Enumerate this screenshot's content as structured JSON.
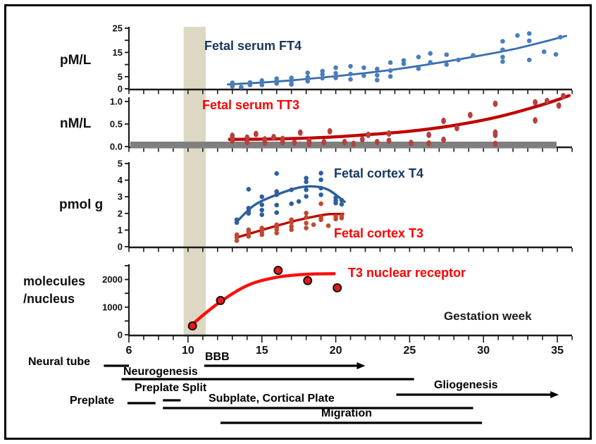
{
  "labels": {
    "ft4": "Fetal serum FT4",
    "tt3": "Fetal serum TT3",
    "cortex_t4": "Fetal cortex T4",
    "cortex_t3": "Fetal cortex T3",
    "receptor": "T3 nuclear receptor",
    "gestation": "Gestation week",
    "unit_ft4": "pM/L",
    "unit_tt3": "nM/L",
    "unit_cortex": "pmol g",
    "unit_receptor_line1": "molecules",
    "unit_receptor_line2": "/nucleus"
  },
  "timeline": [
    {
      "id": "neural-tube",
      "label": "Neural tube",
      "from_week": 4.3,
      "to_week": 6.0,
      "arrow": false
    },
    {
      "id": "neurogenesis",
      "label": "Neurogenesis",
      "from_week": 5.5,
      "to_week": 25.3,
      "arrow": false
    },
    {
      "id": "bbb",
      "label": "BBB",
      "from_week": 11.1,
      "to_week": 22.0,
      "arrow": true
    },
    {
      "id": "preplate-split",
      "label": "Preplate Split",
      "from_week": 8.3,
      "to_week": 9.5,
      "arrow": false
    },
    {
      "id": "preplate",
      "label": "Preplate",
      "from_week": 5.9,
      "to_week": 7.8,
      "arrow": false
    },
    {
      "id": "subplate",
      "label": "Subplate, Cortical Plate",
      "from_week": 8.3,
      "to_week": 29.3,
      "arrow": false
    },
    {
      "id": "migration",
      "label": "Migration",
      "from_week": 12.2,
      "to_week": 29.9,
      "arrow": false
    },
    {
      "id": "gliogenesis",
      "label": "Gliogenesis",
      "from_week": 24.1,
      "to_week": 35.1,
      "arrow": true
    }
  ],
  "chart_data": [
    {
      "type": "scatter",
      "panel": "fetal_serum_ft4",
      "title": "Fetal serum FT4",
      "ylabel": "pM/L",
      "xlabel": "Gestation week",
      "xlim": [
        6,
        36
      ],
      "ylim": [
        0,
        25
      ],
      "yticks": [
        {
          "v": 0,
          "label": "0"
        },
        {
          "v": 5,
          "label": "5"
        },
        {
          "v": 10,
          "label": ""
        },
        {
          "v": 15,
          "label": "15"
        },
        {
          "v": 20,
          "label": ""
        },
        {
          "v": 25,
          "label": "25"
        }
      ],
      "series": [
        {
          "name": "Fetal serum FT4",
          "dot_color": "#4a7ebb",
          "line_color": "#3a6db0",
          "points": [
            [
              13,
              1.0
            ],
            [
              13,
              2.5
            ],
            [
              13.6,
              0.7
            ],
            [
              14.2,
              1.6
            ],
            [
              14.2,
              2.6
            ],
            [
              15,
              1.6
            ],
            [
              15,
              2.6
            ],
            [
              15,
              3.4
            ],
            [
              16,
              2.2
            ],
            [
              16,
              3.1
            ],
            [
              16,
              4.2
            ],
            [
              17,
              1.8
            ],
            [
              17,
              3.1
            ],
            [
              17,
              4.5
            ],
            [
              18.1,
              3.1
            ],
            [
              18.1,
              4.8
            ],
            [
              18.1,
              6.6
            ],
            [
              19.1,
              4.4
            ],
            [
              19.1,
              6.0
            ],
            [
              19.1,
              7.3
            ],
            [
              20,
              4.5
            ],
            [
              20,
              6.4
            ],
            [
              20,
              8.7
            ],
            [
              21,
              3.9
            ],
            [
              21,
              6.1
            ],
            [
              21,
              9.3
            ],
            [
              21.9,
              5.4
            ],
            [
              21.9,
              8.7
            ],
            [
              22.8,
              3.6
            ],
            [
              22.8,
              5.6
            ],
            [
              22.8,
              8.2
            ],
            [
              23.7,
              5.1
            ],
            [
              23.7,
              7.5
            ],
            [
              23.7,
              10.8
            ],
            [
              24.6,
              10.3
            ],
            [
              24.6,
              11.7
            ],
            [
              25.6,
              8.3
            ],
            [
              25.6,
              13.1
            ],
            [
              26.4,
              10.9
            ],
            [
              26.4,
              14.6
            ],
            [
              27.5,
              10.0
            ],
            [
              27.5,
              14.1
            ],
            [
              28.3,
              11.9
            ],
            [
              29.3,
              13.8
            ],
            [
              31.3,
              11.2
            ],
            [
              31.3,
              13.1
            ],
            [
              31.3,
              16.1
            ],
            [
              31.3,
              19.6
            ],
            [
              32.3,
              22.0
            ],
            [
              33.1,
              11.9
            ],
            [
              33.1,
              19.8
            ],
            [
              33.1,
              22.8
            ],
            [
              34.1,
              15.3
            ],
            [
              34.9,
              14.2
            ],
            [
              35.2,
              21.3
            ]
          ],
          "trend": [
            [
              12.7,
              1.8
            ],
            [
              16,
              3.0
            ],
            [
              20,
              5.2
            ],
            [
              24,
              8.0
            ],
            [
              28,
              11.8
            ],
            [
              32,
              16.3
            ],
            [
              35.6,
              21.8
            ]
          ]
        }
      ]
    },
    {
      "type": "scatter",
      "panel": "fetal_serum_tt3",
      "title": "Fetal serum TT3",
      "ylabel": "nM/L",
      "xlabel": "Gestation week",
      "xlim": [
        6,
        36
      ],
      "ylim": [
        0,
        1.05
      ],
      "yticks": [
        {
          "v": 0,
          "label": "0.0"
        },
        {
          "v": 0.5,
          "label": "0.5"
        },
        {
          "v": 1.0,
          "label": "1.0"
        }
      ],
      "detection_band": {
        "from": 0,
        "to": 0.11,
        "color": "#7f7f7f"
      },
      "series": [
        {
          "name": "Fetal serum TT3",
          "dot_color": "#b5413f",
          "line_color": "#c00000",
          "points": [
            [
              13,
              0.13
            ],
            [
              13,
              0.19
            ],
            [
              13,
              0.24
            ],
            [
              14,
              0.1
            ],
            [
              14,
              0.2
            ],
            [
              14.6,
              0.28
            ],
            [
              15.2,
              0.09
            ],
            [
              15.2,
              0.16
            ],
            [
              15.8,
              0.21
            ],
            [
              16.4,
              0.1
            ],
            [
              16.4,
              0.17
            ],
            [
              17.2,
              0.09
            ],
            [
              17.6,
              0.31
            ],
            [
              18.2,
              0.06
            ],
            [
              18.2,
              0.13
            ],
            [
              19.2,
              0.1
            ],
            [
              19.6,
              0.34
            ],
            [
              20.6,
              0.1
            ],
            [
              21.2,
              0.06
            ],
            [
              21.8,
              0.16
            ],
            [
              22.2,
              0.26
            ],
            [
              22.8,
              0.1
            ],
            [
              23.6,
              0.13
            ],
            [
              23.6,
              0.29
            ],
            [
              25.1,
              0.08
            ],
            [
              26.3,
              0.07
            ],
            [
              26.3,
              0.26
            ],
            [
              27.3,
              0.15
            ],
            [
              27.3,
              0.57
            ],
            [
              28.2,
              0.41
            ],
            [
              29.1,
              0.7
            ],
            [
              30.8,
              0.06
            ],
            [
              30.8,
              0.26
            ],
            [
              30.8,
              0.31
            ],
            [
              30.8,
              0.95
            ],
            [
              33.5,
              0.58
            ],
            [
              33.5,
              0.98
            ],
            [
              34.3,
              1.01
            ],
            [
              35.1,
              0.91
            ],
            [
              35.4,
              1.12
            ]
          ],
          "trend": [
            [
              12.8,
              0.16
            ],
            [
              16,
              0.17
            ],
            [
              19,
              0.2
            ],
            [
              22,
              0.26
            ],
            [
              25,
              0.34
            ],
            [
              28,
              0.47
            ],
            [
              31,
              0.66
            ],
            [
              34,
              0.93
            ],
            [
              35.8,
              1.13
            ]
          ]
        }
      ]
    },
    {
      "type": "scatter",
      "panel": "fetal_cortex",
      "title": "Fetal cortex T4 / Fetal cortex T3",
      "ylabel": "pmol g",
      "xlabel": "Gestation week",
      "xlim": [
        6,
        36
      ],
      "ylim": [
        0,
        5
      ],
      "yticks": [
        {
          "v": 0,
          "label": "0"
        },
        {
          "v": 1,
          "label": "1"
        },
        {
          "v": 2,
          "label": "2"
        },
        {
          "v": 3,
          "label": "3"
        },
        {
          "v": 4,
          "label": "4"
        },
        {
          "v": 5,
          "label": "5"
        }
      ],
      "series": [
        {
          "name": "Fetal cortex T4",
          "dot_color": "#2e5f9e",
          "line_color": "#2e5f9e",
          "points": [
            [
              13.3,
              1.45
            ],
            [
              13.3,
              1.62
            ],
            [
              14.1,
              2.0
            ],
            [
              14.1,
              2.15
            ],
            [
              14.1,
              2.32
            ],
            [
              14.1,
              3.45
            ],
            [
              15,
              1.92
            ],
            [
              15,
              2.2
            ],
            [
              15,
              2.52
            ],
            [
              15,
              3.0
            ],
            [
              16,
              2.05
            ],
            [
              16,
              2.5
            ],
            [
              16,
              3.12
            ],
            [
              16,
              3.32
            ],
            [
              16,
              4.4
            ],
            [
              17,
              2.58
            ],
            [
              17,
              3.42
            ],
            [
              17.5,
              2.72
            ],
            [
              18,
              3.02
            ],
            [
              18,
              3.42
            ],
            [
              18,
              3.9
            ],
            [
              18,
              4.12
            ],
            [
              19,
              3.12
            ],
            [
              19,
              3.52
            ],
            [
              19,
              4.02
            ],
            [
              19,
              4.42
            ],
            [
              20,
              2.62
            ],
            [
              20,
              2.78
            ],
            [
              20,
              2.95
            ],
            [
              20.4,
              2.55
            ],
            [
              20.4,
              2.8
            ]
          ],
          "trend": [
            [
              13.3,
              1.5
            ],
            [
              14.5,
              2.5
            ],
            [
              16,
              3.12
            ],
            [
              17.5,
              3.55
            ],
            [
              18.5,
              3.62
            ],
            [
              19.5,
              3.42
            ],
            [
              20.6,
              2.7
            ]
          ]
        },
        {
          "name": "Fetal cortex T3",
          "dot_color": "#c0492f",
          "line_color": "#c00000",
          "points": [
            [
              13.3,
              0.36
            ],
            [
              13.3,
              0.56
            ],
            [
              13.3,
              0.72
            ],
            [
              14.1,
              0.62
            ],
            [
              14.1,
              0.78
            ],
            [
              14.1,
              0.92
            ],
            [
              14.1,
              1.02
            ],
            [
              15,
              0.72
            ],
            [
              15,
              0.86
            ],
            [
              15,
              1.02
            ],
            [
              15,
              1.12
            ],
            [
              16,
              0.82
            ],
            [
              16,
              1.02
            ],
            [
              16,
              1.16
            ],
            [
              16,
              1.32
            ],
            [
              17,
              1.02
            ],
            [
              17,
              1.22
            ],
            [
              17,
              1.46
            ],
            [
              17,
              1.62
            ],
            [
              18,
              1.12
            ],
            [
              18,
              1.42
            ],
            [
              18,
              1.76
            ],
            [
              18,
              2.02
            ],
            [
              18.5,
              1.32
            ],
            [
              19,
              1.62
            ],
            [
              19,
              1.78
            ],
            [
              19,
              2.58
            ],
            [
              19.5,
              1.26
            ],
            [
              20,
              1.66
            ],
            [
              20,
              1.82
            ],
            [
              20.4,
              1.72
            ],
            [
              20.4,
              1.86
            ]
          ],
          "trend": [
            [
              13.3,
              0.55
            ],
            [
              15,
              1.0
            ],
            [
              17,
              1.5
            ],
            [
              18.5,
              1.8
            ],
            [
              19.5,
              1.95
            ],
            [
              20.5,
              1.97
            ]
          ]
        }
      ]
    },
    {
      "type": "scatter",
      "panel": "t3_nuclear_receptor",
      "title": "T3 nuclear receptor",
      "ylabel": "molecules/nucleus",
      "xlabel": "Gestation week",
      "xlim": [
        6,
        36
      ],
      "ylim": [
        0,
        2500
      ],
      "yticks": [
        {
          "v": 0,
          "label": "0"
        },
        {
          "v": 500,
          "label": ""
        },
        {
          "v": 1000,
          "label": "1000"
        },
        {
          "v": 1500,
          "label": ""
        },
        {
          "v": 2000,
          "label": "2000"
        },
        {
          "v": 2500,
          "label": ""
        }
      ],
      "xticks": [
        {
          "w": 6,
          "label": "6"
        },
        {
          "w": 10,
          "label": "10"
        },
        {
          "w": 15,
          "label": "15"
        },
        {
          "w": 20,
          "label": "20"
        },
        {
          "w": 25,
          "label": "25"
        },
        {
          "w": 30,
          "label": "30"
        },
        {
          "w": 35,
          "label": "35"
        }
      ],
      "series": [
        {
          "name": "T3 nuclear receptor",
          "dot_color": "#ee1515",
          "dot_outline": "#111111",
          "line_color": "#fb0f0c",
          "points": [
            [
              10.3,
              320
            ],
            [
              12.2,
              1240
            ],
            [
              16.1,
              2330
            ],
            [
              18.1,
              1960
            ],
            [
              20.1,
              1700
            ]
          ],
          "trend": [
            [
              10.4,
              430
            ],
            [
              12,
              1120
            ],
            [
              14,
              1780
            ],
            [
              16,
              2080
            ],
            [
              18,
              2190
            ],
            [
              19.9,
              2210
            ]
          ]
        }
      ]
    }
  ],
  "highlight_band": {
    "from_week": 9.7,
    "to_week": 11.2,
    "color": "#ddd8c3"
  }
}
